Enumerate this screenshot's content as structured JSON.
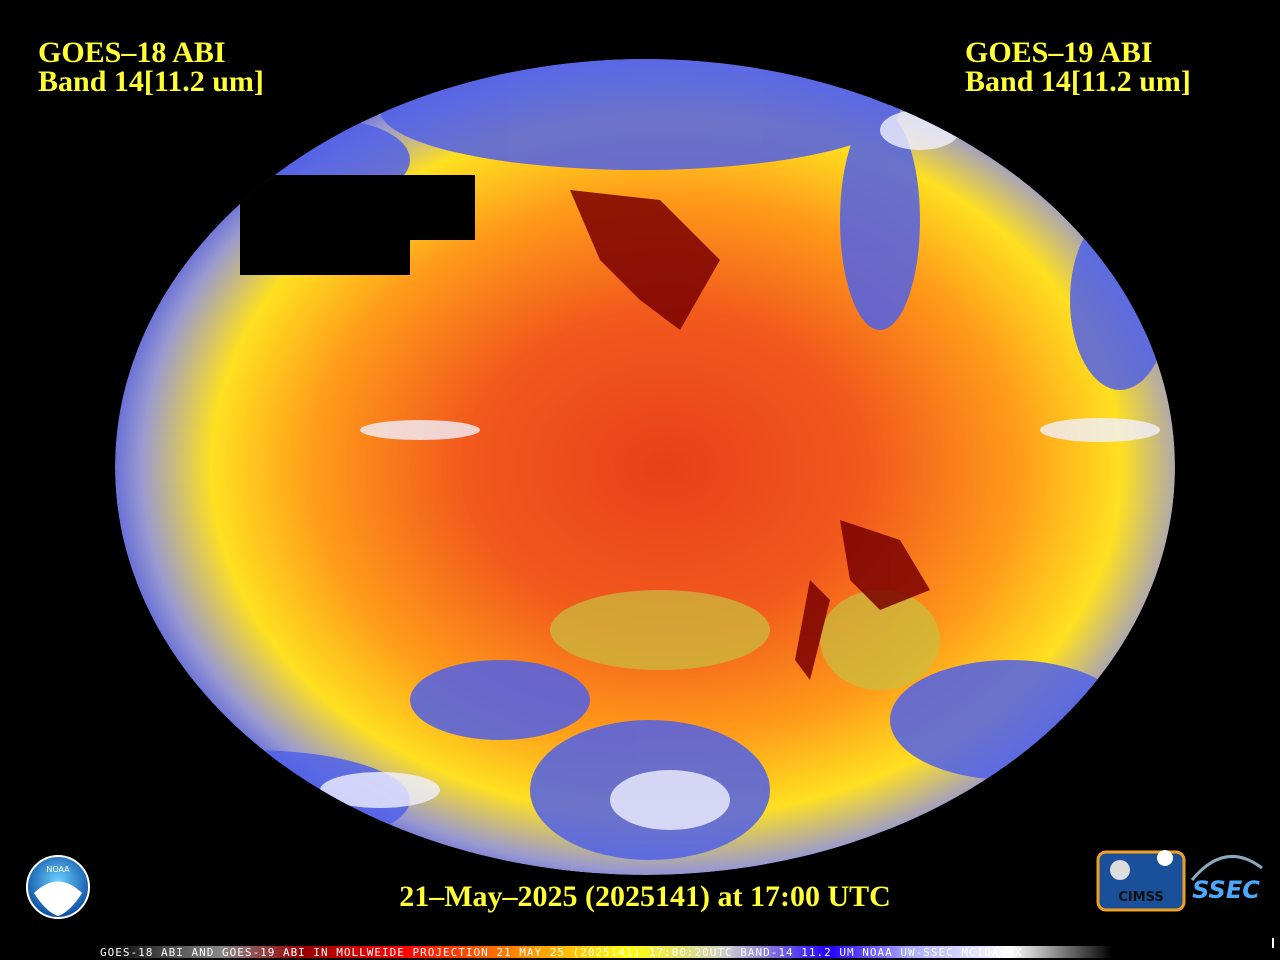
{
  "header": {
    "left": {
      "satellite": "GOES–18 ABI",
      "band": "Band 14[11.2 um]"
    },
    "right": {
      "satellite": "GOES–19 ABI",
      "band": "Band 14[11.2 um]"
    }
  },
  "timestamp": "21–May–2025 (2025141) at 17:00 UTC",
  "footer": "GOES-18 ABI AND GOES-19 ABI IN MOLLWEIDE PROJECTION 21 MAY 25 (2025141) 17:00:20UTC BAND-14 11.2 UM NOAA UW-SSEC MCIDAS-X",
  "logos": {
    "noaa": "NOAA",
    "cimss": "CIMSS",
    "ssec": "SSEC"
  }
}
